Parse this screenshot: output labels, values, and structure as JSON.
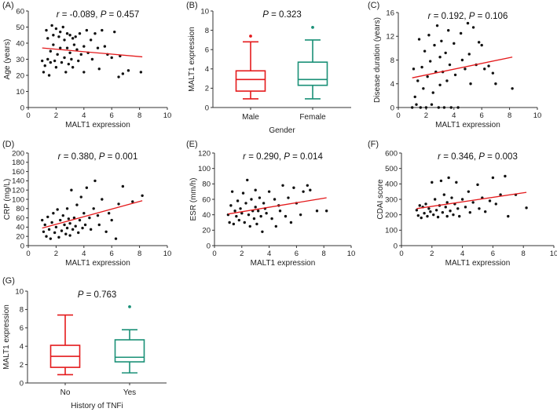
{
  "colors": {
    "red": "#e41a1c",
    "green": "#1a9077",
    "dot": "#111111",
    "axis": "#333333"
  },
  "chart_data": [
    {
      "id": "A",
      "type": "scatter",
      "panel_label": "(A)",
      "stat": {
        "r_part": "r",
        "text": " = -0.089, ",
        "p_part": "P",
        "p_text": " = 0.457"
      },
      "xlabel": "MALT1 expression",
      "ylabel": "Age (years)",
      "xlim": [
        0,
        10
      ],
      "ylim": [
        0,
        60
      ],
      "xticks": [
        "0",
        "2",
        "4",
        "6",
        "8",
        "10"
      ],
      "yticks": [
        "0",
        "10",
        "20",
        "30",
        "40",
        "50",
        "60"
      ],
      "trend": {
        "x": [
          1.0,
          8.2
        ],
        "y": [
          37,
          31.5
        ]
      },
      "points": [
        [
          1.0,
          29
        ],
        [
          1.1,
          22
        ],
        [
          1.2,
          26
        ],
        [
          1.3,
          48
        ],
        [
          1.4,
          43
        ],
        [
          1.4,
          30
        ],
        [
          1.5,
          20
        ],
        [
          1.6,
          35
        ],
        [
          1.6,
          28
        ],
        [
          1.7,
          51
        ],
        [
          1.8,
          45
        ],
        [
          1.8,
          39
        ],
        [
          1.9,
          29
        ],
        [
          2.0,
          49
        ],
        [
          2.0,
          25
        ],
        [
          2.1,
          33
        ],
        [
          2.2,
          44
        ],
        [
          2.3,
          47
        ],
        [
          2.3,
          37
        ],
        [
          2.4,
          28
        ],
        [
          2.5,
          50
        ],
        [
          2.6,
          42
        ],
        [
          2.6,
          31
        ],
        [
          2.7,
          22
        ],
        [
          2.8,
          46
        ],
        [
          2.8,
          37
        ],
        [
          2.9,
          27
        ],
        [
          3.0,
          45
        ],
        [
          3.0,
          34
        ],
        [
          3.1,
          30
        ],
        [
          3.2,
          43
        ],
        [
          3.2,
          25
        ],
        [
          3.3,
          39
        ],
        [
          3.4,
          44
        ],
        [
          3.5,
          36
        ],
        [
          3.6,
          29
        ],
        [
          3.7,
          46
        ],
        [
          3.8,
          33
        ],
        [
          4.0,
          38
        ],
        [
          4.0,
          22
        ],
        [
          4.2,
          48
        ],
        [
          4.3,
          34
        ],
        [
          4.5,
          42
        ],
        [
          4.6,
          30
        ],
        [
          4.8,
          46
        ],
        [
          5.0,
          37
        ],
        [
          5.1,
          24
        ],
        [
          5.3,
          48
        ],
        [
          5.5,
          38
        ],
        [
          5.7,
          33
        ],
        [
          6.0,
          31
        ],
        [
          6.2,
          47
        ],
        [
          6.5,
          19
        ],
        [
          6.6,
          32
        ],
        [
          6.8,
          21
        ],
        [
          7.2,
          23
        ],
        [
          8.1,
          22
        ]
      ]
    },
    {
      "id": "B",
      "type": "box",
      "panel_label": "(B)",
      "stat": {
        "p_part": "P",
        "p_text": " = 0.323"
      },
      "xlabel": "Gender",
      "ylabel": "MALT1 expression",
      "ylim": [
        0,
        10
      ],
      "yticks": [
        "0",
        "2",
        "4",
        "6",
        "8",
        "10"
      ],
      "categories": [
        "Male",
        "Female"
      ],
      "series": [
        {
          "name": "Male",
          "color": "#e41a1c",
          "whisker_low": 0.9,
          "q1": 1.7,
          "median": 2.9,
          "q3": 3.8,
          "whisker_high": 6.8,
          "outliers": [
            7.4
          ]
        },
        {
          "name": "Female",
          "color": "#1a9077",
          "whisker_low": 0.9,
          "q1": 2.3,
          "median": 2.9,
          "q3": 4.7,
          "whisker_high": 7.0,
          "outliers": [
            8.3
          ]
        }
      ]
    },
    {
      "id": "C",
      "type": "scatter",
      "panel_label": "(C)",
      "stat": {
        "r_part": "r",
        "text": " = 0.192, ",
        "p_part": "P",
        "p_text": " = 0.106"
      },
      "xlabel": "MALT1 expression",
      "ylabel": "Disease duration (years)",
      "xlim": [
        0,
        10
      ],
      "ylim": [
        0,
        16
      ],
      "xticks": [
        "0",
        "2",
        "4",
        "6",
        "8",
        "10"
      ],
      "yticks": [
        "0",
        "4",
        "8",
        "12",
        "16"
      ],
      "trend": {
        "x": [
          1.0,
          8.2
        ],
        "y": [
          5.0,
          8.5
        ]
      },
      "points": [
        [
          1.0,
          0
        ],
        [
          1.1,
          6.5
        ],
        [
          1.2,
          1.8
        ],
        [
          1.3,
          0.5
        ],
        [
          1.4,
          4.5
        ],
        [
          1.5,
          11.5
        ],
        [
          1.6,
          0
        ],
        [
          1.7,
          6.8
        ],
        [
          1.8,
          3.2
        ],
        [
          1.9,
          9.5
        ],
        [
          2.0,
          0
        ],
        [
          2.1,
          5.2
        ],
        [
          2.2,
          12.2
        ],
        [
          2.3,
          7.8
        ],
        [
          2.4,
          0.5
        ],
        [
          2.5,
          2.5
        ],
        [
          2.6,
          10.5
        ],
        [
          2.7,
          6.0
        ],
        [
          2.8,
          13.8
        ],
        [
          2.9,
          0
        ],
        [
          3.0,
          8.5
        ],
        [
          3.0,
          3.8
        ],
        [
          3.1,
          11.2
        ],
        [
          3.2,
          6.0
        ],
        [
          3.3,
          0
        ],
        [
          3.4,
          9.2
        ],
        [
          3.5,
          4.5
        ],
        [
          3.6,
          13.0
        ],
        [
          3.7,
          7.2
        ],
        [
          3.8,
          0
        ],
        [
          4.0,
          10.8
        ],
        [
          4.1,
          5.5
        ],
        [
          4.3,
          0
        ],
        [
          4.5,
          12.5
        ],
        [
          4.6,
          8.0
        ],
        [
          4.8,
          6.5
        ],
        [
          5.0,
          14.2
        ],
        [
          5.1,
          9.0
        ],
        [
          5.2,
          4.0
        ],
        [
          5.4,
          13.5
        ],
        [
          5.6,
          7.2
        ],
        [
          5.8,
          11.0
        ],
        [
          6.0,
          10.5
        ],
        [
          6.2,
          6.5
        ],
        [
          6.5,
          7.0
        ],
        [
          6.8,
          5.8
        ],
        [
          7.0,
          4.0
        ],
        [
          8.2,
          3.2
        ]
      ]
    },
    {
      "id": "D",
      "type": "scatter",
      "panel_label": "(D)",
      "stat": {
        "r_part": "r",
        "text": " = 0.380, ",
        "p_part": "P",
        "p_text": " = 0.001"
      },
      "xlabel": "MALT1 expression",
      "ylabel": "CRP (mg/L)",
      "xlim": [
        0,
        10
      ],
      "ylim": [
        0,
        200
      ],
      "xticks": [
        "0",
        "2",
        "4",
        "6",
        "8",
        "10"
      ],
      "yticks": [
        "0",
        "20",
        "40",
        "60",
        "80",
        "100",
        "120",
        "140",
        "160",
        "180",
        "200"
      ],
      "trend": {
        "x": [
          1.0,
          8.2
        ],
        "y": [
          38,
          97
        ]
      },
      "points": [
        [
          1.0,
          55
        ],
        [
          1.1,
          30
        ],
        [
          1.2,
          45
        ],
        [
          1.3,
          20
        ],
        [
          1.4,
          62
        ],
        [
          1.5,
          35
        ],
        [
          1.6,
          15
        ],
        [
          1.7,
          50
        ],
        [
          1.8,
          70
        ],
        [
          1.9,
          28
        ],
        [
          2.0,
          40
        ],
        [
          2.1,
          78
        ],
        [
          2.2,
          18
        ],
        [
          2.3,
          55
        ],
        [
          2.4,
          32
        ],
        [
          2.5,
          65
        ],
        [
          2.6,
          45
        ],
        [
          2.7,
          25
        ],
        [
          2.8,
          80
        ],
        [
          2.8,
          38
        ],
        [
          2.9,
          58
        ],
        [
          3.0,
          22
        ],
        [
          3.0,
          48
        ],
        [
          3.1,
          120
        ],
        [
          3.2,
          35
        ],
        [
          3.3,
          60
        ],
        [
          3.4,
          42
        ],
        [
          3.5,
          88
        ],
        [
          3.6,
          28
        ],
        [
          3.7,
          55
        ],
        [
          3.8,
          105
        ],
        [
          3.9,
          38
        ],
        [
          4.0,
          70
        ],
        [
          4.1,
          45
        ],
        [
          4.2,
          125
        ],
        [
          4.4,
          60
        ],
        [
          4.5,
          35
        ],
        [
          4.7,
          80
        ],
        [
          4.8,
          140
        ],
        [
          5.0,
          65
        ],
        [
          5.1,
          45
        ],
        [
          5.3,
          100
        ],
        [
          5.6,
          30
        ],
        [
          5.8,
          70
        ],
        [
          6.0,
          55
        ],
        [
          6.3,
          15
        ],
        [
          6.5,
          90
        ],
        [
          6.8,
          128
        ],
        [
          7.5,
          95
        ],
        [
          8.2,
          108
        ]
      ]
    },
    {
      "id": "E",
      "type": "scatter",
      "panel_label": "(E)",
      "stat": {
        "r_part": "r",
        "text": " = 0.290, ",
        "p_part": "P",
        "p_text": " = 0.014"
      },
      "xlabel": "MALT1 expression",
      "ylabel": "ESR (mm/h)",
      "xlim": [
        0,
        10
      ],
      "ylim": [
        0,
        120
      ],
      "xticks": [
        "0",
        "2",
        "4",
        "6",
        "8",
        "10"
      ],
      "yticks": [
        "0",
        "20",
        "40",
        "60",
        "80",
        "100",
        "120"
      ],
      "trend": {
        "x": [
          1.0,
          8.2
        ],
        "y": [
          41,
          62
        ]
      },
      "points": [
        [
          1.0,
          40
        ],
        [
          1.1,
          30
        ],
        [
          1.2,
          52
        ],
        [
          1.3,
          70
        ],
        [
          1.4,
          28
        ],
        [
          1.5,
          45
        ],
        [
          1.6,
          38
        ],
        [
          1.7,
          58
        ],
        [
          1.8,
          33
        ],
        [
          1.9,
          48
        ],
        [
          2.0,
          42
        ],
        [
          2.1,
          68
        ],
        [
          2.2,
          30
        ],
        [
          2.3,
          55
        ],
        [
          2.4,
          85
        ],
        [
          2.5,
          40
        ],
        [
          2.6,
          25
        ],
        [
          2.7,
          60
        ],
        [
          2.8,
          45
        ],
        [
          2.9,
          35
        ],
        [
          3.0,
          50
        ],
        [
          3.0,
          72
        ],
        [
          3.1,
          28
        ],
        [
          3.2,
          45
        ],
        [
          3.3,
          62
        ],
        [
          3.4,
          38
        ],
        [
          3.5,
          18
        ],
        [
          3.6,
          55
        ],
        [
          3.7,
          48
        ],
        [
          3.8,
          42
        ],
        [
          4.0,
          70
        ],
        [
          4.2,
          35
        ],
        [
          4.4,
          60
        ],
        [
          4.5,
          25
        ],
        [
          4.7,
          52
        ],
        [
          4.8,
          45
        ],
        [
          5.0,
          78
        ],
        [
          5.2,
          38
        ],
        [
          5.4,
          62
        ],
        [
          5.6,
          30
        ],
        [
          5.8,
          75
        ],
        [
          6.0,
          55
        ],
        [
          6.3,
          40
        ],
        [
          6.5,
          70
        ],
        [
          6.8,
          78
        ],
        [
          7.0,
          72
        ],
        [
          7.5,
          45
        ],
        [
          8.2,
          45
        ]
      ]
    },
    {
      "id": "F",
      "type": "scatter",
      "panel_label": "(F)",
      "stat": {
        "r_part": "r",
        "text": " = 0.346, ",
        "p_part": "P",
        "p_text": " = 0.003"
      },
      "xlabel": "MALT1 expression",
      "ylabel": "CDAI score",
      "xlim": [
        0,
        10
      ],
      "ylim": [
        0,
        600
      ],
      "xticks": [
        "0",
        "2",
        "4",
        "6",
        "8",
        "10"
      ],
      "yticks": [
        "0",
        "100",
        "200",
        "300",
        "400",
        "500",
        "600"
      ],
      "trend": {
        "x": [
          1.0,
          8.2
        ],
        "y": [
          240,
          345
        ]
      },
      "points": [
        [
          1.0,
          230
        ],
        [
          1.1,
          195
        ],
        [
          1.2,
          260
        ],
        [
          1.3,
          180
        ],
        [
          1.4,
          250
        ],
        [
          1.5,
          210
        ],
        [
          1.6,
          270
        ],
        [
          1.7,
          190
        ],
        [
          1.8,
          240
        ],
        [
          1.9,
          220
        ],
        [
          2.0,
          410
        ],
        [
          2.1,
          200
        ],
        [
          2.2,
          300
        ],
        [
          2.3,
          230
        ],
        [
          2.4,
          185
        ],
        [
          2.5,
          260
        ],
        [
          2.6,
          420
        ],
        [
          2.7,
          215
        ],
        [
          2.8,
          330
        ],
        [
          2.9,
          250
        ],
        [
          3.0,
          190
        ],
        [
          3.0,
          280
        ],
        [
          3.1,
          440
        ],
        [
          3.2,
          225
        ],
        [
          3.3,
          310
        ],
        [
          3.4,
          200
        ],
        [
          3.5,
          270
        ],
        [
          3.6,
          410
        ],
        [
          3.7,
          240
        ],
        [
          3.8,
          190
        ],
        [
          4.0,
          300
        ],
        [
          4.2,
          250
        ],
        [
          4.4,
          350
        ],
        [
          4.5,
          215
        ],
        [
          4.7,
          280
        ],
        [
          5.0,
          395
        ],
        [
          5.1,
          240
        ],
        [
          5.3,
          310
        ],
        [
          5.5,
          220
        ],
        [
          5.8,
          290
        ],
        [
          6.0,
          440
        ],
        [
          6.2,
          270
        ],
        [
          6.5,
          330
        ],
        [
          6.8,
          450
        ],
        [
          7.0,
          190
        ],
        [
          7.5,
          330
        ],
        [
          8.2,
          245
        ]
      ]
    },
    {
      "id": "G",
      "type": "box",
      "panel_label": "(G)",
      "stat": {
        "p_part": "P",
        "p_text": " = 0.763"
      },
      "xlabel": "History of TNFi",
      "ylabel": "MALT1 expression",
      "ylim": [
        0,
        10
      ],
      "yticks": [
        "0",
        "2",
        "4",
        "6",
        "8",
        "10"
      ],
      "categories": [
        "No",
        "Yes"
      ],
      "series": [
        {
          "name": "No",
          "color": "#e41a1c",
          "whisker_low": 0.9,
          "q1": 1.7,
          "median": 2.9,
          "q3": 4.1,
          "whisker_high": 7.4,
          "outliers": []
        },
        {
          "name": "Yes",
          "color": "#1a9077",
          "whisker_low": 1.1,
          "q1": 2.3,
          "median": 2.8,
          "q3": 4.7,
          "whisker_high": 5.8,
          "outliers": [
            8.3
          ]
        }
      ]
    }
  ]
}
